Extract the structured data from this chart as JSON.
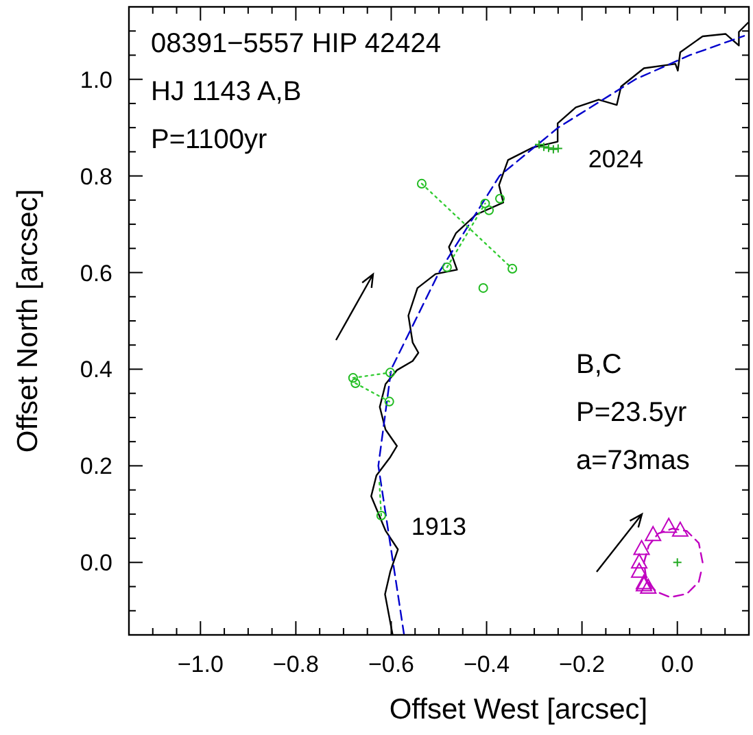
{
  "chart_data": {
    "type": "line",
    "xlabel": "Offset West [arcsec]",
    "ylabel": "Offset North [arcsec]",
    "annotations": [
      "08391−5557   HIP 42424",
      "HJ 1143 A,B",
      "P=1100yr",
      "B,C",
      "P=23.5yr",
      "a=73mas",
      {
        "text": "2024",
        "x": -0.25,
        "y": 0.857
      },
      {
        "text": "1913",
        "x": -0.621,
        "y": 0.097
      }
    ],
    "xlim": [
      -1.15,
      0.15
    ],
    "ylim": [
      -0.15,
      1.15
    ],
    "xticks": [
      {
        "value": -1.15,
        "label": null
      },
      {
        "value": -1.1,
        "label": null
      },
      {
        "value": -1.05,
        "label": null
      },
      {
        "value": -1.0,
        "label": "−1.0"
      },
      {
        "value": -0.95,
        "label": null
      },
      {
        "value": -0.9,
        "label": null
      },
      {
        "value": -0.85,
        "label": null
      },
      {
        "value": -0.8,
        "label": "−0.8"
      },
      {
        "value": -0.75,
        "label": null
      },
      {
        "value": -0.7,
        "label": null
      },
      {
        "value": -0.65,
        "label": null
      },
      {
        "value": -0.6,
        "label": "−0.6"
      },
      {
        "value": -0.55,
        "label": null
      },
      {
        "value": -0.5,
        "label": null
      },
      {
        "value": -0.45,
        "label": null
      },
      {
        "value": -0.4,
        "label": "−0.4"
      },
      {
        "value": -0.35,
        "label": null
      },
      {
        "value": -0.3,
        "label": null
      },
      {
        "value": -0.25,
        "label": null
      },
      {
        "value": -0.2,
        "label": "−0.2"
      },
      {
        "value": -0.15,
        "label": null
      },
      {
        "value": -0.1,
        "label": null
      },
      {
        "value": -0.05,
        "label": null
      },
      {
        "value": 0.0,
        "label": "0.0"
      },
      {
        "value": 0.05,
        "label": null
      },
      {
        "value": 0.1,
        "label": null
      }
    ],
    "yticks": [
      {
        "value": -0.1,
        "label": null
      },
      {
        "value": -0.05,
        "label": null
      },
      {
        "value": 0.0,
        "label": "0.0"
      },
      {
        "value": 0.05,
        "label": null
      },
      {
        "value": 0.1,
        "label": null
      },
      {
        "value": 0.15,
        "label": null
      },
      {
        "value": 0.2,
        "label": "0.2"
      },
      {
        "value": 0.25,
        "label": null
      },
      {
        "value": 0.3,
        "label": null
      },
      {
        "value": 0.35,
        "label": null
      },
      {
        "value": 0.4,
        "label": "0.4"
      },
      {
        "value": 0.45,
        "label": null
      },
      {
        "value": 0.5,
        "label": null
      },
      {
        "value": 0.55,
        "label": null
      },
      {
        "value": 0.6,
        "label": "0.6"
      },
      {
        "value": 0.65,
        "label": null
      },
      {
        "value": 0.7,
        "label": null
      },
      {
        "value": 0.75,
        "label": null
      },
      {
        "value": 0.8,
        "label": "0.8"
      },
      {
        "value": 0.85,
        "label": null
      },
      {
        "value": 0.9,
        "label": null
      },
      {
        "value": 0.95,
        "label": null
      },
      {
        "value": 1.0,
        "label": "1.0"
      },
      {
        "value": 1.05,
        "label": null
      },
      {
        "value": 1.1,
        "label": null
      }
    ],
    "series": [
      {
        "color": "#000000",
        "marker": "none",
        "line_style": "solid",
        "x": [
          -0.597,
          -0.613,
          -0.602,
          -0.586,
          -0.612,
          -0.642,
          -0.631,
          -0.602,
          -0.588,
          -0.612,
          -0.624,
          -0.612,
          -0.588,
          -0.555,
          -0.543,
          -0.555,
          -0.564,
          -0.545,
          -0.507,
          -0.462,
          -0.479,
          -0.464,
          -0.422,
          -0.365,
          -0.374,
          -0.355,
          -0.303,
          -0.251,
          -0.251,
          -0.213,
          -0.165,
          -0.127,
          -0.118,
          -0.07,
          -0.004,
          0.001,
          0.006,
          0.053,
          0.101,
          0.129,
          0.129,
          0.148
        ],
        "values": [
          -0.15,
          -0.066,
          -0.019,
          0.027,
          0.066,
          0.137,
          0.18,
          0.218,
          0.241,
          0.275,
          0.322,
          0.369,
          0.398,
          0.417,
          0.434,
          0.455,
          0.511,
          0.568,
          0.597,
          0.606,
          0.653,
          0.682,
          0.72,
          0.745,
          0.781,
          0.833,
          0.859,
          0.871,
          0.909,
          0.942,
          0.958,
          0.947,
          0.985,
          1.023,
          1.032,
          1.018,
          1.056,
          1.089,
          1.094,
          1.07,
          1.098,
          1.117
        ]
      },
      {
        "color": "#0000cc",
        "marker": "none",
        "line_style": "dashed",
        "x": [
          -0.573,
          -0.627,
          -0.6,
          -0.5,
          -0.373,
          -0.25,
          -0.088,
          0.026,
          0.14
        ],
        "values": [
          -0.15,
          0.2,
          0.4,
          0.6,
          0.8,
          0.9,
          1.0,
          1.05,
          1.09
        ]
      },
      {
        "color": "#33cc33",
        "marker": "none",
        "line_style": "dotted",
        "x": [
          -0.536,
          -0.346
        ],
        "values": [
          0.784,
          0.608
        ]
      },
      {
        "color": "#33cc33",
        "marker": "none",
        "line_style": "dotted",
        "x": [
          -0.483,
          -0.403
        ],
        "values": [
          0.611,
          0.743
        ]
      },
      {
        "color": "#33cc33",
        "marker": "none",
        "line_style": "dotted",
        "x": [
          -0.68,
          -0.602
        ],
        "values": [
          0.382,
          0.393
        ]
      },
      {
        "color": "#33cc33",
        "marker": "none",
        "line_style": "dotted",
        "x": [
          -0.675,
          -0.604
        ],
        "values": [
          0.371,
          0.333
        ]
      },
      {
        "color": "#33cc33",
        "marker": "none",
        "line_style": "dotted",
        "x": [
          -0.621,
          -0.625
        ],
        "values": [
          0.097,
          0.17
        ]
      },
      {
        "type": "scatter",
        "color": "#22bb22",
        "marker": "circle",
        "x": [
          -0.536,
          -0.483,
          -0.403,
          -0.395,
          -0.372,
          -0.346,
          -0.68,
          -0.675,
          -0.602,
          -0.604,
          -0.621,
          -0.407
        ],
        "values": [
          0.784,
          0.611,
          0.743,
          0.729,
          0.753,
          0.608,
          0.382,
          0.371,
          0.393,
          0.333,
          0.097,
          0.568
        ]
      },
      {
        "type": "scatter",
        "color": "#22aa22",
        "marker": "cross",
        "x": [
          -0.29,
          -0.28,
          -0.27,
          -0.26,
          -0.25
        ],
        "values": [
          0.865,
          0.86,
          0.858,
          0.855,
          0.857
        ]
      },
      {
        "type": "scatter",
        "color": "#c000c0",
        "marker": "triangle",
        "x": [
          0.006,
          -0.018,
          -0.051,
          -0.075,
          -0.08,
          -0.08,
          -0.07,
          -0.061,
          -0.07
        ],
        "values": [
          0.066,
          0.074,
          0.057,
          0.028,
          0.0,
          -0.019,
          -0.043,
          -0.052,
          -0.047
        ]
      },
      {
        "color": "#c000c0",
        "marker": "none",
        "line_style": "dashed",
        "x": [
          0.053,
          0.045,
          0.02,
          -0.01,
          -0.04,
          -0.06,
          -0.07,
          -0.065,
          -0.045,
          -0.015,
          0.02,
          0.045,
          0.052
        ],
        "values": [
          0.0,
          0.04,
          0.065,
          0.07,
          0.06,
          0.035,
          0.0,
          -0.035,
          -0.06,
          -0.072,
          -0.065,
          -0.04,
          -0.01
        ]
      },
      {
        "type": "scatter",
        "color": "#22aa22",
        "marker": "cross",
        "x": [
          0.0
        ],
        "values": [
          0.0
        ]
      }
    ]
  }
}
